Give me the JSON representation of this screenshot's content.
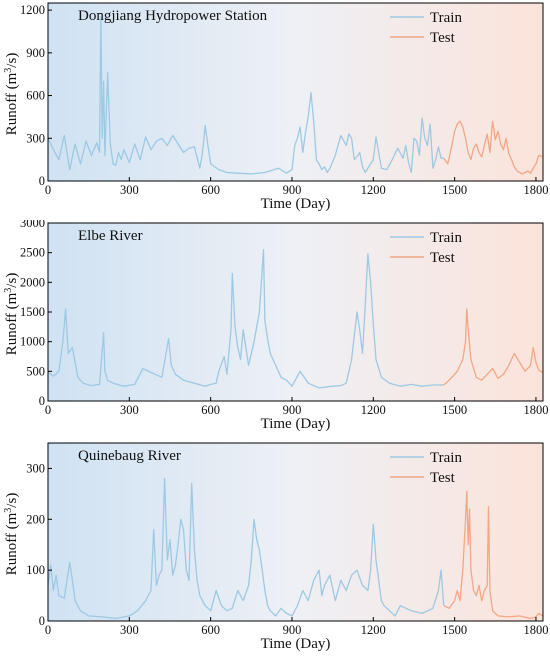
{
  "chart_data": [
    {
      "type": "line",
      "title": "Dongjiang Hydropower Station",
      "xlabel": "Time (Day)",
      "ylabel": "Runoff (m³/s)",
      "ylabel_parts": [
        "Runoff (m",
        "3",
        "/s)"
      ],
      "xlim": [
        0,
        1826
      ],
      "ylim": [
        0,
        1250
      ],
      "xticks": [
        "0",
        "300",
        "600",
        "900",
        "1200",
        "1500",
        "1800"
      ],
      "yticks": [
        "0",
        "300",
        "600",
        "900",
        "1200"
      ],
      "legend": [
        "Train",
        "Test"
      ],
      "legend_position": "top-right",
      "grid": false,
      "split_day": 1460,
      "series": [
        {
          "name": "Train",
          "color": "#9dc9e3",
          "x": [
            0,
            20,
            40,
            60,
            80,
            100,
            120,
            140,
            160,
            180,
            190,
            195,
            200,
            205,
            210,
            220,
            230,
            240,
            250,
            260,
            270,
            280,
            300,
            320,
            340,
            360,
            380,
            400,
            420,
            440,
            460,
            480,
            500,
            520,
            540,
            560,
            570,
            580,
            590,
            600,
            630,
            660,
            700,
            750,
            800,
            850,
            880,
            900,
            910,
            920,
            930,
            940,
            950,
            960,
            970,
            980,
            990,
            1000,
            1010,
            1020,
            1030,
            1040,
            1060,
            1080,
            1100,
            1110,
            1120,
            1130,
            1140,
            1150,
            1160,
            1170,
            1190,
            1200,
            1210,
            1220,
            1230,
            1250,
            1270,
            1290,
            1310,
            1320,
            1330,
            1340,
            1350,
            1360,
            1370,
            1380,
            1390,
            1400,
            1410,
            1420,
            1430,
            1440,
            1450,
            1460
          ],
          "y": [
            300,
            220,
            150,
            320,
            80,
            260,
            120,
            280,
            180,
            270,
            200,
            1150,
            300,
            700,
            180,
            760,
            260,
            120,
            110,
            200,
            150,
            220,
            130,
            260,
            150,
            310,
            220,
            280,
            300,
            250,
            320,
            260,
            200,
            230,
            240,
            90,
            200,
            390,
            250,
            120,
            80,
            60,
            55,
            50,
            60,
            90,
            55,
            80,
            250,
            300,
            380,
            200,
            340,
            450,
            620,
            420,
            150,
            120,
            80,
            100,
            60,
            90,
            180,
            320,
            250,
            330,
            300,
            150,
            170,
            200,
            100,
            60,
            120,
            150,
            310,
            200,
            90,
            80,
            150,
            230,
            160,
            250,
            130,
            60,
            300,
            280,
            180,
            440,
            300,
            250,
            400,
            90,
            150,
            240,
            160,
            160
          ]
        },
        {
          "name": "Test",
          "color": "#f2a785",
          "x": [
            1460,
            1475,
            1490,
            1500,
            1510,
            1520,
            1530,
            1540,
            1550,
            1560,
            1570,
            1580,
            1590,
            1600,
            1610,
            1620,
            1630,
            1640,
            1650,
            1660,
            1670,
            1680,
            1690,
            1700,
            1710,
            1720,
            1730,
            1740,
            1750,
            1760,
            1770,
            1780,
            1790,
            1800,
            1810,
            1826
          ],
          "y": [
            160,
            120,
            250,
            350,
            400,
            420,
            380,
            300,
            200,
            150,
            230,
            260,
            200,
            170,
            250,
            330,
            200,
            420,
            290,
            350,
            260,
            220,
            300,
            190,
            150,
            100,
            70,
            60,
            50,
            60,
            70,
            55,
            90,
            120,
            180,
            170
          ]
        }
      ]
    },
    {
      "type": "line",
      "title": "Elbe River",
      "xlabel": "Time (Day)",
      "ylabel": "Runoff (m³/s)",
      "ylabel_parts": [
        "Runoff (m",
        "3",
        "/s)"
      ],
      "xlim": [
        0,
        1826
      ],
      "ylim": [
        0,
        3000
      ],
      "xticks": [
        "0",
        "300",
        "600",
        "900",
        "1200",
        "1500",
        "1800"
      ],
      "yticks": [
        "0",
        "500",
        "1000",
        "1500",
        "2000",
        "2500",
        "3000"
      ],
      "legend": [
        "Train",
        "Test"
      ],
      "legend_position": "top-right",
      "grid": false,
      "split_day": 1460,
      "series": [
        {
          "name": "Train",
          "color": "#9dc9e3",
          "x": [
            0,
            20,
            40,
            55,
            65,
            75,
            90,
            110,
            130,
            160,
            190,
            205,
            210,
            220,
            240,
            280,
            320,
            350,
            380,
            420,
            445,
            455,
            470,
            500,
            540,
            580,
            600,
            620,
            630,
            650,
            660,
            675,
            680,
            690,
            700,
            710,
            720,
            740,
            760,
            780,
            795,
            800,
            810,
            820,
            840,
            860,
            880,
            900,
            930,
            960,
            1000,
            1050,
            1080,
            1100,
            1120,
            1130,
            1140,
            1150,
            1160,
            1170,
            1180,
            1190,
            1200,
            1210,
            1230,
            1260,
            1300,
            1340,
            1380,
            1420,
            1460
          ],
          "y": [
            480,
            420,
            500,
            1000,
            1550,
            800,
            900,
            400,
            300,
            260,
            280,
            1150,
            500,
            350,
            300,
            250,
            280,
            550,
            480,
            400,
            1050,
            600,
            450,
            350,
            300,
            250,
            280,
            300,
            500,
            750,
            450,
            1200,
            2150,
            1250,
            900,
            700,
            1200,
            600,
            1000,
            1500,
            2550,
            1350,
            1050,
            800,
            600,
            400,
            350,
            250,
            500,
            300,
            220,
            250,
            260,
            300,
            700,
            1100,
            1500,
            1200,
            800,
            1600,
            2480,
            2000,
            1300,
            700,
            400,
            300,
            250,
            280,
            250,
            270,
            270
          ]
        },
        {
          "name": "Test",
          "color": "#f2a785",
          "x": [
            1460,
            1480,
            1500,
            1510,
            1520,
            1530,
            1540,
            1545,
            1550,
            1560,
            1570,
            1580,
            1600,
            1620,
            1640,
            1660,
            1680,
            1700,
            1720,
            1740,
            1760,
            1780,
            1790,
            1800,
            1810,
            1826
          ],
          "y": [
            270,
            350,
            450,
            500,
            600,
            700,
            1000,
            1550,
            1200,
            700,
            550,
            400,
            350,
            450,
            550,
            380,
            450,
            600,
            800,
            650,
            500,
            600,
            900,
            650,
            520,
            480
          ]
        }
      ]
    },
    {
      "type": "line",
      "title": "Quinebaug River",
      "xlabel": "Time (Day)",
      "ylabel": "Runoff (m³/s)",
      "ylabel_parts": [
        "Runoff (m",
        "3",
        "/s)"
      ],
      "xlim": [
        0,
        1826
      ],
      "ylim": [
        0,
        350
      ],
      "xticks": [
        "0",
        "300",
        "600",
        "900",
        "1200",
        "1500",
        "1800"
      ],
      "yticks": [
        "0",
        "100",
        "200",
        "300"
      ],
      "legend": [
        "Train",
        "Test"
      ],
      "legend_position": "top-right",
      "grid": false,
      "split_day": 1460,
      "series": [
        {
          "name": "Train",
          "color": "#9dc9e3",
          "x": [
            0,
            10,
            20,
            30,
            40,
            60,
            80,
            90,
            100,
            120,
            150,
            200,
            250,
            300,
            330,
            360,
            380,
            390,
            400,
            410,
            420,
            430,
            440,
            450,
            460,
            470,
            480,
            490,
            500,
            510,
            520,
            530,
            540,
            550,
            560,
            580,
            600,
            620,
            640,
            660,
            680,
            700,
            720,
            740,
            750,
            760,
            770,
            780,
            790,
            800,
            810,
            820,
            840,
            860,
            880,
            900,
            920,
            940,
            960,
            980,
            1000,
            1010,
            1020,
            1040,
            1060,
            1080,
            1100,
            1120,
            1140,
            1160,
            1180,
            1190,
            1200,
            1210,
            1220,
            1230,
            1240,
            1260,
            1280,
            1300,
            1340,
            1380,
            1420,
            1440,
            1450,
            1460
          ],
          "y": [
            70,
            110,
            60,
            90,
            50,
            45,
            115,
            80,
            40,
            20,
            10,
            8,
            5,
            10,
            20,
            40,
            60,
            180,
            70,
            90,
            100,
            280,
            120,
            160,
            90,
            110,
            150,
            200,
            180,
            100,
            80,
            270,
            140,
            80,
            50,
            30,
            20,
            60,
            30,
            20,
            25,
            60,
            40,
            70,
            120,
            200,
            160,
            140,
            100,
            60,
            30,
            20,
            10,
            25,
            15,
            10,
            30,
            60,
            40,
            80,
            100,
            50,
            70,
            90,
            40,
            80,
            60,
            90,
            100,
            70,
            60,
            100,
            190,
            120,
            80,
            40,
            30,
            20,
            10,
            30,
            20,
            15,
            25,
            60,
            100,
            30
          ]
        },
        {
          "name": "Test",
          "color": "#f2a785",
          "x": [
            1460,
            1480,
            1500,
            1510,
            1520,
            1530,
            1540,
            1545,
            1550,
            1555,
            1560,
            1570,
            1580,
            1590,
            1600,
            1610,
            1620,
            1625,
            1630,
            1640,
            1660,
            1700,
            1740,
            1780,
            1800,
            1810,
            1826
          ],
          "y": [
            30,
            25,
            40,
            60,
            40,
            100,
            200,
            255,
            150,
            220,
            100,
            60,
            50,
            70,
            40,
            60,
            70,
            225,
            60,
            20,
            10,
            8,
            10,
            5,
            8,
            15,
            10
          ]
        }
      ]
    }
  ]
}
